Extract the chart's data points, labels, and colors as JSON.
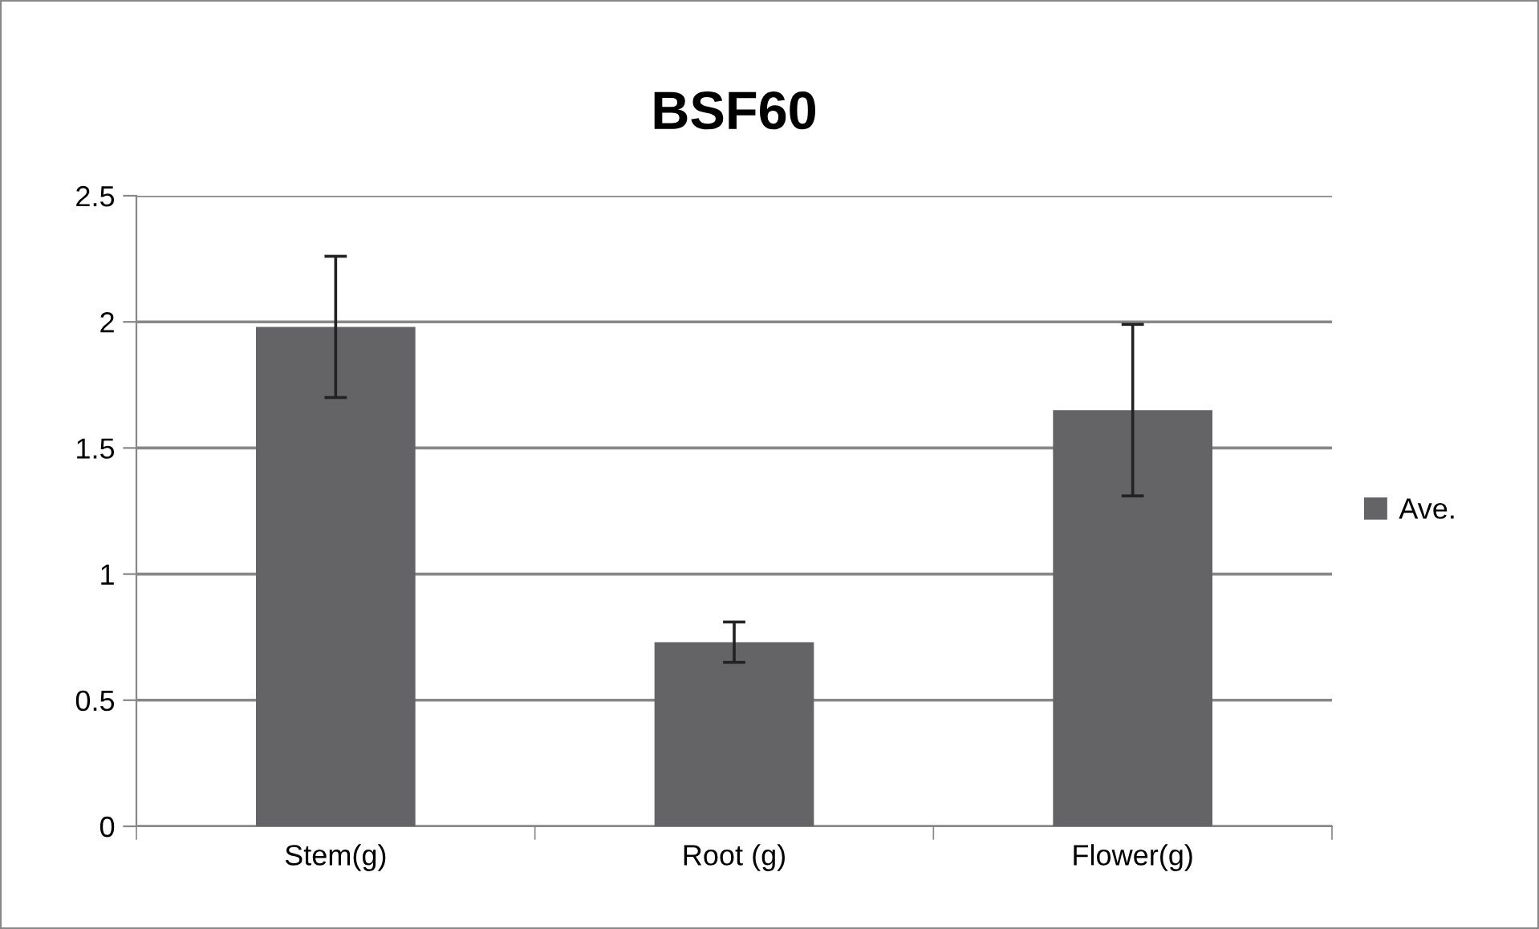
{
  "chart_data": {
    "type": "bar",
    "title": "BSF60",
    "categories": [
      "Stem(g)",
      "Root (g)",
      "Flower(g)"
    ],
    "series": [
      {
        "name": "Ave.",
        "color": "#646466",
        "values": [
          1.98,
          0.73,
          1.65
        ],
        "errors": [
          0.28,
          0.08,
          0.34
        ]
      }
    ],
    "ylim": [
      0,
      2.5
    ],
    "yticks": [
      0,
      0.5,
      1,
      1.5,
      2,
      2.5
    ],
    "grid": "y",
    "legend": "right"
  }
}
